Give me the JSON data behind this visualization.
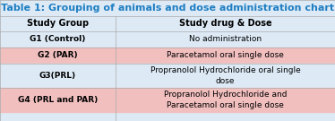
{
  "title": "Table 1: Grouping of animals and dose administration chart",
  "title_color": "#1F7EC2",
  "title_bg": "#DDEAF6",
  "col_headers": [
    "Study Group",
    "Study drug & Dose"
  ],
  "header_bg": "#DDEAF6",
  "rows": [
    {
      "group": "G1 (Control)",
      "dose": "No administration",
      "bg": "#DDEAF6"
    },
    {
      "group": "G2 (PAR)",
      "dose": "Paracetamol oral single dose",
      "bg": "#F2BFBF"
    },
    {
      "group": "G3(PRL)",
      "dose": "Propranolol Hydrochloride oral single\ndose",
      "bg": "#DDEAF6"
    },
    {
      "group": "G4 (PRL and PAR)",
      "dose": "Propranolol Hydrochloride and\nParacetamol oral single dose",
      "bg": "#F2BFBF"
    }
  ],
  "border_color": "#AAAAAA",
  "col_header_fontsize": 7.0,
  "row_fontsize": 6.5,
  "title_fontsize": 8.0,
  "col_split": 0.345,
  "fig_width": 3.74,
  "fig_height": 1.35,
  "dpi": 100
}
